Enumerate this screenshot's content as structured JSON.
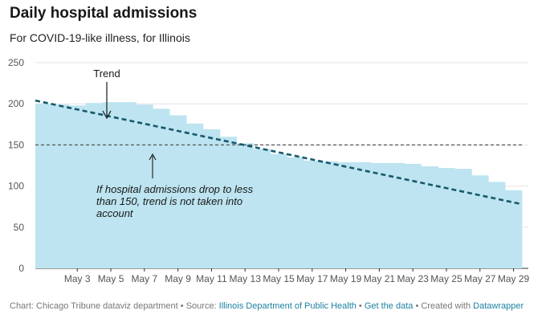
{
  "header": {
    "title": "Daily hospital admissions",
    "subtitle": "For COVID-19-like illness, for Illinois"
  },
  "chart_data": {
    "type": "area",
    "title": "Daily hospital admissions",
    "subtitle": "For COVID-19-like illness, for Illinois",
    "xlabel": "",
    "ylabel": "",
    "ylim": [
      0,
      250
    ],
    "y_ticks": [
      0,
      50,
      100,
      150,
      200,
      250
    ],
    "x_tick_labels": [
      "May 3",
      "May 5",
      "May 7",
      "May 9",
      "May 11",
      "May 13",
      "May 15",
      "May 17",
      "May 19",
      "May 21",
      "May 23",
      "May 25",
      "May 27",
      "May 29"
    ],
    "grid": true,
    "series": [
      {
        "x": [
          "May 1",
          "May 2",
          "May 3",
          "May 4",
          "May 5",
          "May 6",
          "May 7",
          "May 8",
          "May 9",
          "May 10",
          "May 11",
          "May 12",
          "May 13",
          "May 14",
          "May 15",
          "May 16",
          "May 17",
          "May 18",
          "May 19",
          "May 20",
          "May 21",
          "May 22",
          "May 23",
          "May 24",
          "May 25",
          "May 26",
          "May 27",
          "May 28",
          "May 29"
        ],
        "values": [
          200,
          199,
          198,
          201,
          202,
          202,
          199,
          194,
          186,
          176,
          169,
          160,
          152,
          145,
          139,
          135,
          131,
          130,
          129,
          129,
          128,
          128,
          127,
          124,
          122,
          121,
          113,
          105,
          95
        ]
      }
    ],
    "trend": {
      "start": {
        "x": "May 1",
        "y": 204
      },
      "end": {
        "x": "May 29",
        "y": 78
      }
    },
    "reference_line": {
      "y": 150
    },
    "annotations": {
      "trend_label": "Trend",
      "threshold_note": [
        "If hospital admissions drop to less",
        "than 150, trend is not taken into",
        "account"
      ]
    },
    "colors": {
      "area": "#bde4f0",
      "trend": "#17586c",
      "reference": "#555555",
      "grid": "#e4e4e4"
    }
  },
  "footer": {
    "chart_credit": "Chart: Chicago Tribune dataviz department",
    "separator": " • ",
    "source_label": "Source: ",
    "source_name": "Illinois Department of Public Health",
    "get_data": "Get the data",
    "created_with": "Created with ",
    "tool": "Datawrapper"
  }
}
